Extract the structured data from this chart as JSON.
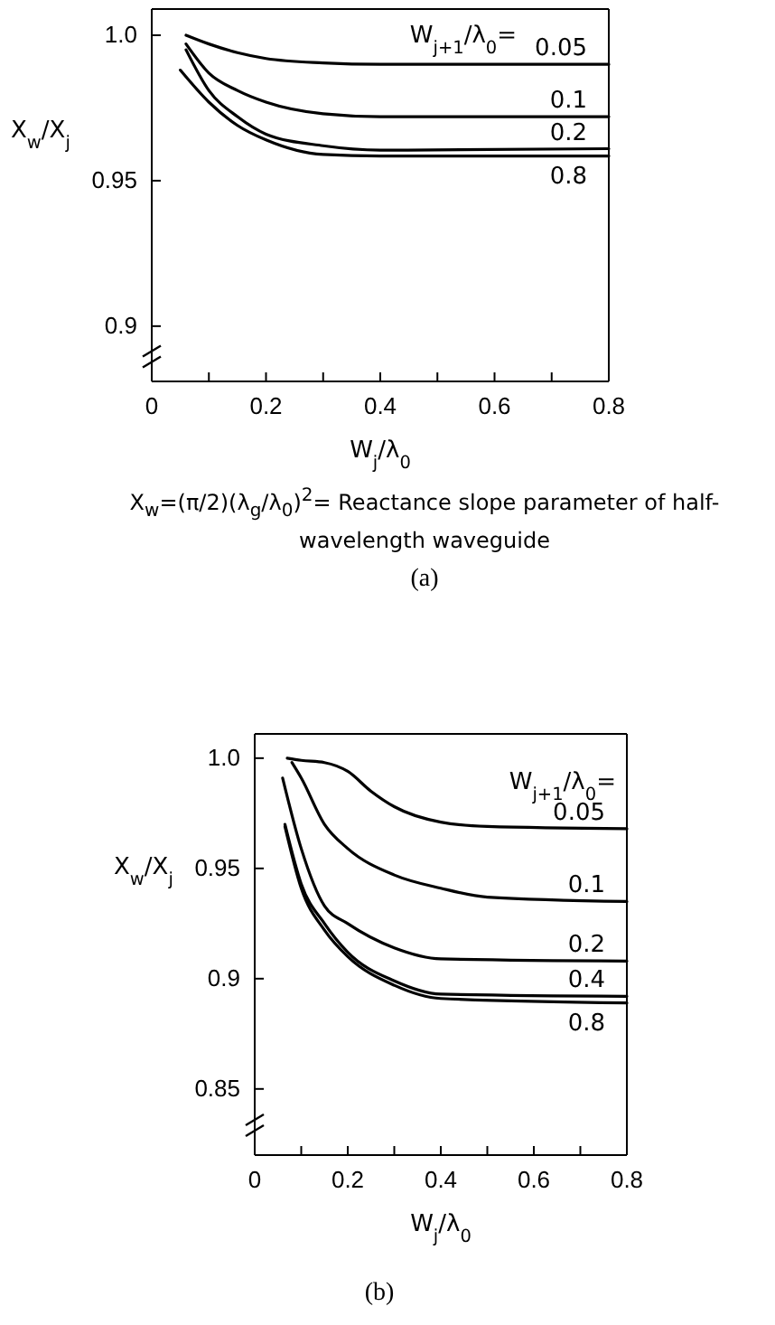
{
  "chart_data": [
    {
      "type": "line",
      "legend_title": "W$_{j+1}$/λ$_{0}$=",
      "xlabel": "W$_{j}$/λ$_{0}$",
      "ylabel": "X$_{w}$/X$_{j}$",
      "xlim": [
        0,
        0.8
      ],
      "ylim": [
        0.881,
        1.009
      ],
      "xticks": [
        0,
        {
          "value": 0.1,
          "label": null
        },
        {
          "value": 0.2,
          "label": "0.2"
        },
        {
          "value": 0.3,
          "label": null
        },
        {
          "value": 0.4,
          "label": "0.4"
        },
        {
          "value": 0.5,
          "label": null
        },
        {
          "value": 0.6,
          "label": "0.6"
        },
        {
          "value": 0.7,
          "label": null
        },
        {
          "value": 0.8,
          "label": "0.8"
        }
      ],
      "yticks": [
        {
          "value": 0.9,
          "label": "0.9"
        },
        {
          "value": 0.95,
          "label": "0.95"
        },
        {
          "value": 1,
          "label": "1.0"
        }
      ],
      "series": [
        {
          "name": "0.05",
          "color": "#000000",
          "x": [
            0.06,
            0.1,
            0.15,
            0.2,
            0.3,
            0.4,
            0.8
          ],
          "values": [
            1.0,
            0.997,
            0.994,
            0.992,
            0.9905,
            0.99,
            0.99
          ]
        },
        {
          "name": "0.1",
          "color": "#000000",
          "x": [
            0.06,
            0.1,
            0.15,
            0.2,
            0.3,
            0.4,
            0.8
          ],
          "values": [
            0.997,
            0.987,
            0.981,
            0.977,
            0.973,
            0.972,
            0.972
          ]
        },
        {
          "name": "0.2",
          "color": "#000000",
          "x": [
            0.06,
            0.1,
            0.15,
            0.2,
            0.3,
            0.4,
            0.8
          ],
          "values": [
            0.995,
            0.981,
            0.972,
            0.966,
            0.962,
            0.9605,
            0.961
          ]
        },
        {
          "name": "0.8",
          "color": "#000000",
          "x": [
            0.05,
            0.1,
            0.15,
            0.2,
            0.3,
            0.4,
            0.8
          ],
          "values": [
            0.988,
            0.977,
            0.969,
            0.964,
            0.959,
            0.9585,
            0.9585
          ]
        }
      ],
      "annotations": [
        "X$_{w}$=(π/2)(λ$_{g}$/λ$_{0}$)$^{2}$= Reactance slope parameter of half-wavelength waveguide",
        "(a)"
      ]
    },
    {
      "type": "line",
      "legend_title": "W$_{j+1}$/λ$_{0}$=",
      "xlabel": "W$_{j}$/λ$_{0}$",
      "ylabel": "X$_{w}$/X$_{j}$",
      "xlim": [
        0,
        0.8
      ],
      "ylim": [
        0.82,
        1.011
      ],
      "xticks": [
        0,
        {
          "value": 0.1,
          "label": null
        },
        {
          "value": 0.2,
          "label": "0.2"
        },
        {
          "value": 0.3,
          "label": null
        },
        {
          "value": 0.4,
          "label": "0.4"
        },
        {
          "value": 0.5,
          "label": null
        },
        {
          "value": 0.6,
          "label": "0.6"
        },
        {
          "value": 0.7,
          "label": null
        },
        {
          "value": 0.8,
          "label": "0.8"
        }
      ],
      "yticks": [
        {
          "value": 0.85,
          "label": "0.85"
        },
        {
          "value": 0.9,
          "label": "0.9"
        },
        {
          "value": 0.95,
          "label": "0.95"
        },
        {
          "value": 1,
          "label": "1.0"
        }
      ],
      "series": [
        {
          "name": "0.05",
          "color": "#000000",
          "x": [
            0.07,
            0.1,
            0.15,
            0.2,
            0.25,
            0.3,
            0.4,
            0.5,
            0.8
          ],
          "values": [
            1.0,
            0.999,
            0.998,
            0.994,
            0.985,
            0.978,
            0.971,
            0.969,
            0.968
          ]
        },
        {
          "name": "0.1",
          "color": "#000000",
          "x": [
            0.08,
            0.1,
            0.15,
            0.2,
            0.3,
            0.4,
            0.5,
            0.8
          ],
          "values": [
            0.998,
            0.991,
            0.97,
            0.959,
            0.947,
            0.941,
            0.937,
            0.935
          ]
        },
        {
          "name": "0.2",
          "color": "#000000",
          "x": [
            0.06,
            0.1,
            0.15,
            0.2,
            0.3,
            0.4,
            0.8
          ],
          "values": [
            0.991,
            0.959,
            0.933,
            0.925,
            0.914,
            0.909,
            0.908
          ]
        },
        {
          "name": "0.4",
          "color": "#000000",
          "x": [
            0.065,
            0.1,
            0.15,
            0.2,
            0.3,
            0.4,
            0.8
          ],
          "values": [
            0.97,
            0.943,
            0.925,
            0.912,
            0.899,
            0.893,
            0.892
          ]
        },
        {
          "name": "0.8",
          "color": "#000000",
          "x": [
            0.065,
            0.1,
            0.15,
            0.2,
            0.3,
            0.4,
            0.8
          ],
          "values": [
            0.969,
            0.941,
            0.922,
            0.91,
            0.897,
            0.891,
            0.889
          ]
        }
      ],
      "annotations": [
        "(b)"
      ]
    }
  ]
}
